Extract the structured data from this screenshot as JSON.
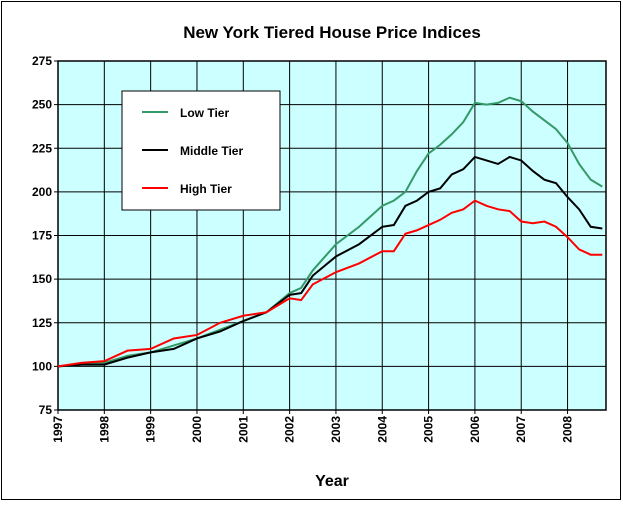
{
  "chart_data": {
    "type": "line",
    "title": "New York Tiered House Price Indices",
    "x_label": "Year",
    "x": [
      1997,
      1997.5,
      1998,
      1998.5,
      1999,
      1999.5,
      2000,
      2000.5,
      2001,
      2001.5,
      2002,
      2002.25,
      2002.5,
      2003,
      2003.5,
      2004,
      2004.25,
      2004.5,
      2004.75,
      2005,
      2005.25,
      2005.5,
      2005.75,
      2006,
      2006.25,
      2006.5,
      2006.75,
      2007,
      2007.25,
      2007.5,
      2007.75,
      2008,
      2008.25,
      2008.5,
      2008.75
    ],
    "series": [
      {
        "name": "Low Tier",
        "color": "#339966",
        "values": [
          100,
          101,
          102,
          106,
          108,
          112,
          116,
          121,
          126,
          131,
          142,
          145,
          155,
          170,
          180,
          192,
          195,
          200,
          212,
          222,
          227,
          233,
          240,
          251,
          250,
          251,
          254,
          252,
          246,
          241,
          236,
          228,
          216,
          207,
          203
        ]
      },
      {
        "name": "Middle Tier",
        "color": "#000000",
        "values": [
          100,
          101,
          101,
          105,
          108,
          110,
          116,
          120,
          126,
          131,
          141,
          142,
          152,
          163,
          170,
          180,
          181,
          192,
          195,
          200,
          202,
          210,
          213,
          220,
          218,
          216,
          220,
          218,
          212,
          207,
          205,
          197,
          190,
          180,
          179
        ]
      },
      {
        "name": "High Tier",
        "color": "#ff0000",
        "values": [
          100,
          102,
          103,
          109,
          110,
          116,
          118,
          125,
          129,
          131,
          139,
          138,
          147,
          154,
          159,
          166,
          166,
          176,
          178,
          181,
          184,
          188,
          190,
          195,
          192,
          190,
          189,
          183,
          182,
          183,
          180,
          174,
          167,
          164,
          164
        ]
      }
    ],
    "xlim": [
      1997,
      2008.83
    ],
    "xticks": [
      1997,
      1998,
      1999,
      2000,
      2001,
      2002,
      2003,
      2004,
      2005,
      2006,
      2007,
      2008
    ],
    "ylim": [
      75,
      275
    ],
    "yticks": [
      75,
      100,
      125,
      150,
      175,
      200,
      225,
      250,
      275
    ],
    "grid": true,
    "legend": "upper left"
  }
}
